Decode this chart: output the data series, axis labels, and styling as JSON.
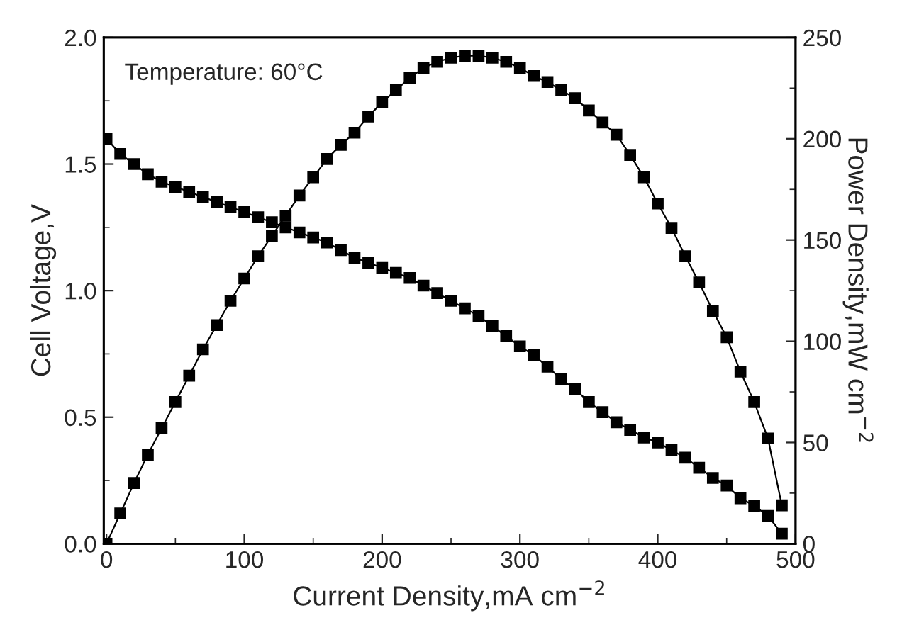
{
  "chart_data": {
    "type": "line",
    "xlabel": "Current Density,mA cm$^{−2}$",
    "ylabel": "Cell Voltage,V",
    "y2label": "Power Density,mW cm$^{−2}$",
    "annotations": [
      "Temperature: 60°C"
    ],
    "x": [
      0,
      10,
      20,
      30,
      40,
      50,
      60,
      70,
      80,
      90,
      100,
      110,
      120,
      130,
      140,
      150,
      160,
      170,
      180,
      190,
      200,
      210,
      220,
      230,
      240,
      250,
      260,
      270,
      280,
      290,
      300,
      310,
      320,
      330,
      340,
      350,
      360,
      370,
      380,
      390,
      400,
      410,
      420,
      430,
      440,
      450,
      460,
      470,
      480,
      490
    ],
    "series": [
      {
        "color": "#000000",
        "axis": "y",
        "values": [
          1.6,
          1.54,
          1.5,
          1.46,
          1.43,
          1.41,
          1.39,
          1.37,
          1.35,
          1.33,
          1.31,
          1.29,
          1.27,
          1.25,
          1.23,
          1.21,
          1.19,
          1.16,
          1.13,
          1.11,
          1.09,
          1.07,
          1.05,
          1.02,
          0.99,
          0.96,
          0.93,
          0.9,
          0.86,
          0.82,
          0.78,
          0.745,
          0.7,
          0.65,
          0.61,
          0.56,
          0.52,
          0.48,
          0.45,
          0.42,
          0.4,
          0.37,
          0.34,
          0.3,
          0.26,
          0.23,
          0.18,
          0.15,
          0.11,
          0.04
        ]
      },
      {
        "color": "#000000",
        "axis": "y2",
        "values": [
          0,
          15,
          30,
          44,
          57,
          70,
          83,
          96,
          108,
          120,
          131,
          142,
          152,
          162,
          172,
          181,
          190,
          197,
          203,
          211,
          218,
          224,
          230,
          235,
          238,
          240,
          241,
          241,
          240,
          238,
          235,
          231,
          228,
          224,
          220,
          214,
          208,
          202,
          192,
          181,
          168,
          156,
          142,
          129,
          115,
          102,
          85,
          70,
          52,
          19
        ]
      }
    ],
    "xlim": [
      -2,
      500
    ],
    "xticks": [
      0,
      100,
      200,
      300,
      400,
      500
    ],
    "ylim": [
      0,
      2.0
    ],
    "yticks": [
      {
        "value": 0,
        "label": "0.0"
      },
      {
        "value": 0.5,
        "label": "0.5"
      },
      {
        "value": 1.0,
        "label": "1.0"
      },
      {
        "value": 1.5,
        "label": "1.5"
      },
      {
        "value": 2.0,
        "label": "2.0"
      }
    ],
    "y2lim": [
      0,
      250
    ],
    "y2ticks": [
      0,
      50,
      100,
      150,
      200,
      250
    ],
    "marker": "square",
    "line_style": "solid",
    "grid": false,
    "legend": false
  }
}
